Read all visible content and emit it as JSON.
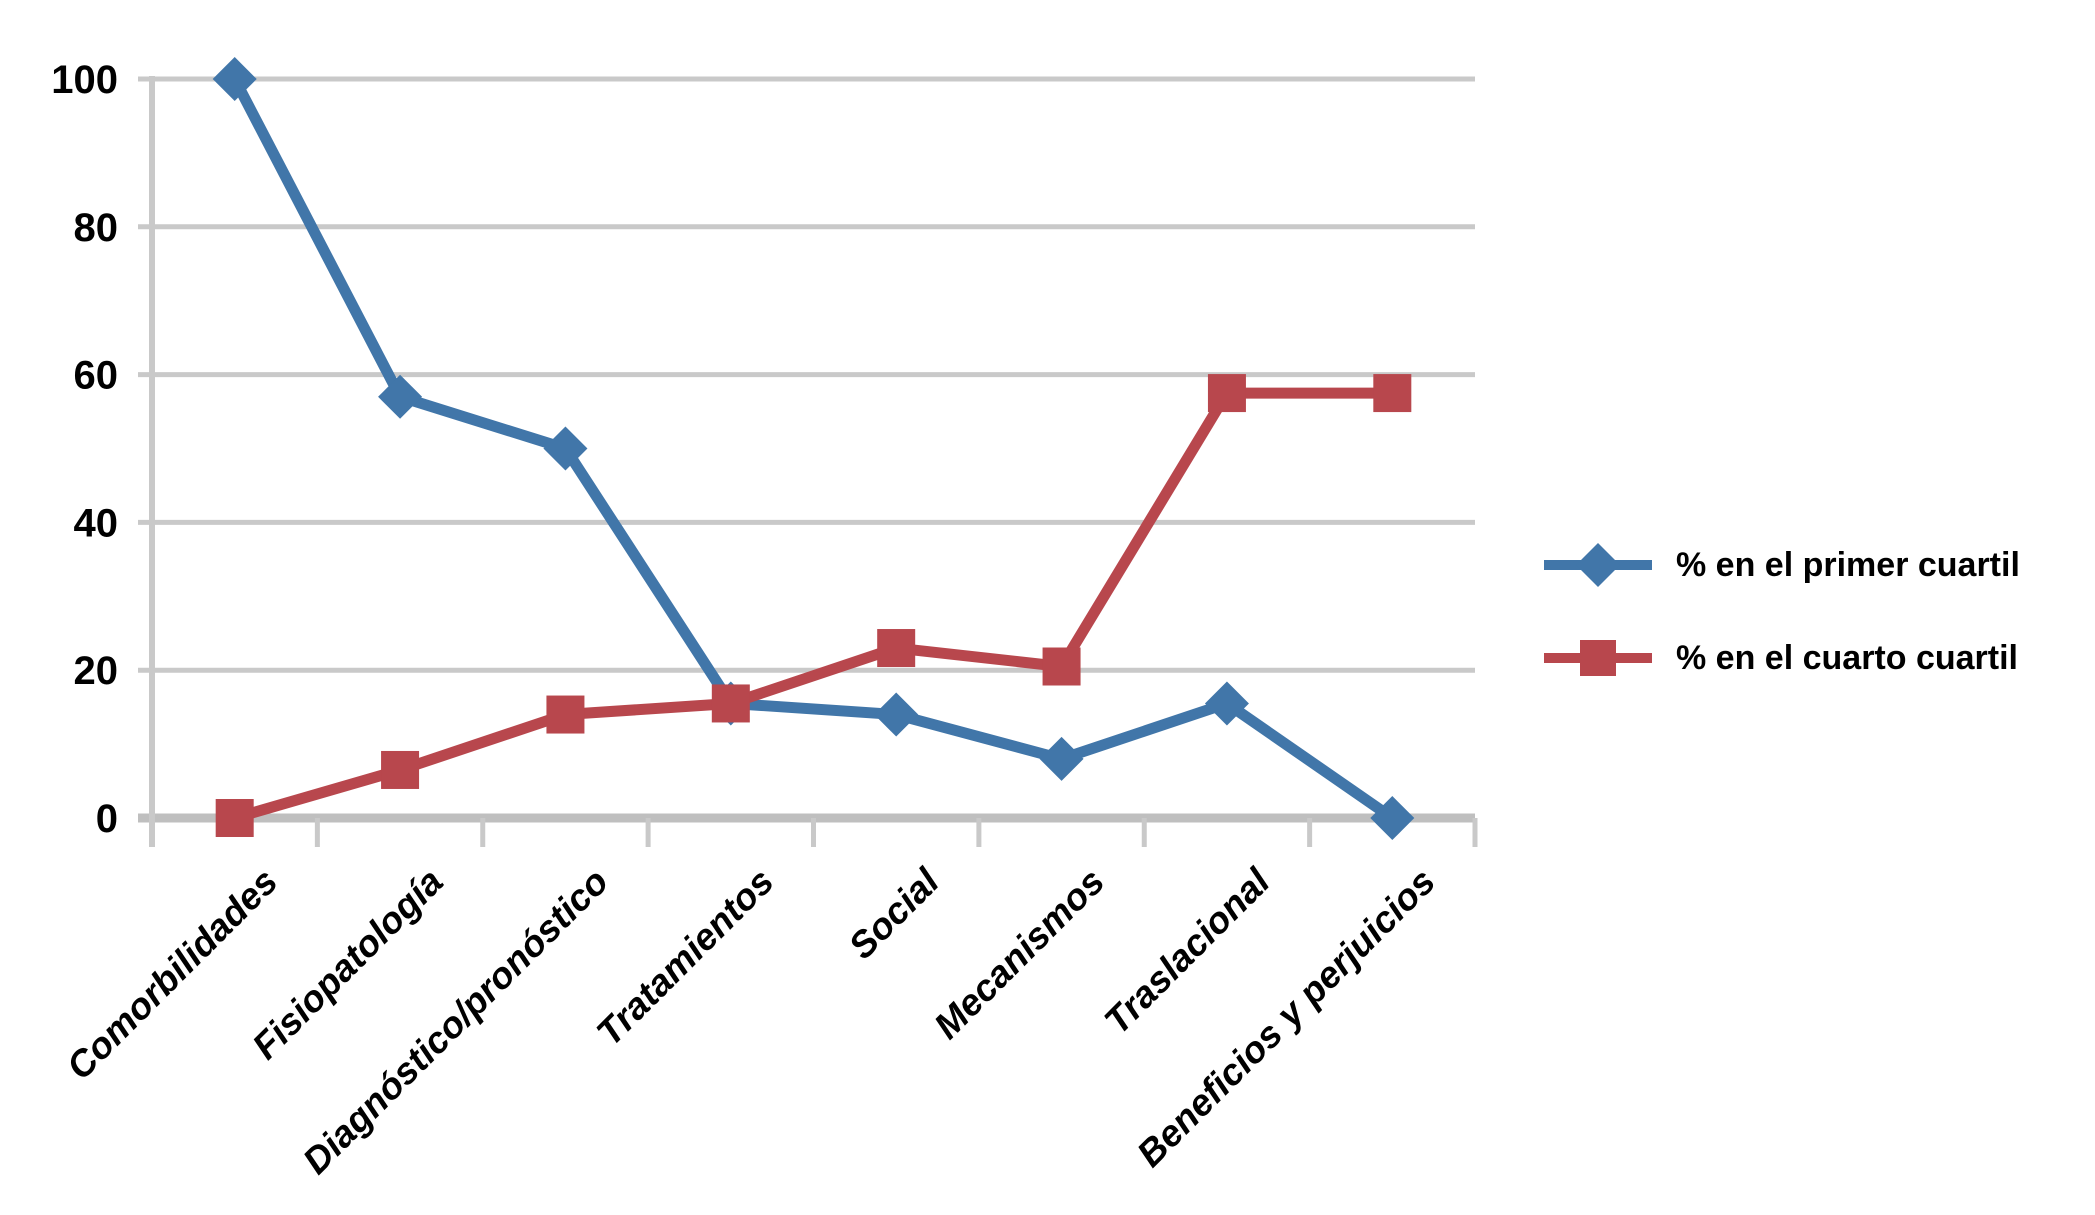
{
  "chart_data": {
    "type": "line",
    "categories": [
      "Comorbilidades",
      "Fisiopatología",
      "Diagnóstico/pronóstico",
      "Tratamientos",
      "Social",
      "Mecanismos",
      "Traslacional",
      "Beneficios y perjuicios"
    ],
    "series": [
      {
        "name": "% en el primer cuartil",
        "marker": "diamond",
        "color": "#4176A9",
        "values": [
          100,
          57,
          50,
          15.5,
          14,
          8,
          15.5,
          0
        ]
      },
      {
        "name": "% en el cuarto cuartil",
        "marker": "square",
        "color": "#B8474D",
        "values": [
          0,
          6.5,
          14,
          15.5,
          23,
          20.5,
          57.5,
          57.5
        ]
      }
    ],
    "ylim": [
      0,
      100
    ],
    "yticks": [
      0,
      20,
      40,
      60,
      80,
      100
    ],
    "grid": true,
    "legend_position": "right",
    "colors": {
      "gridline": "#C9C9C9",
      "axis": "#BFBFBF",
      "tick_label": "#000000",
      "category_label": "#000000"
    }
  }
}
